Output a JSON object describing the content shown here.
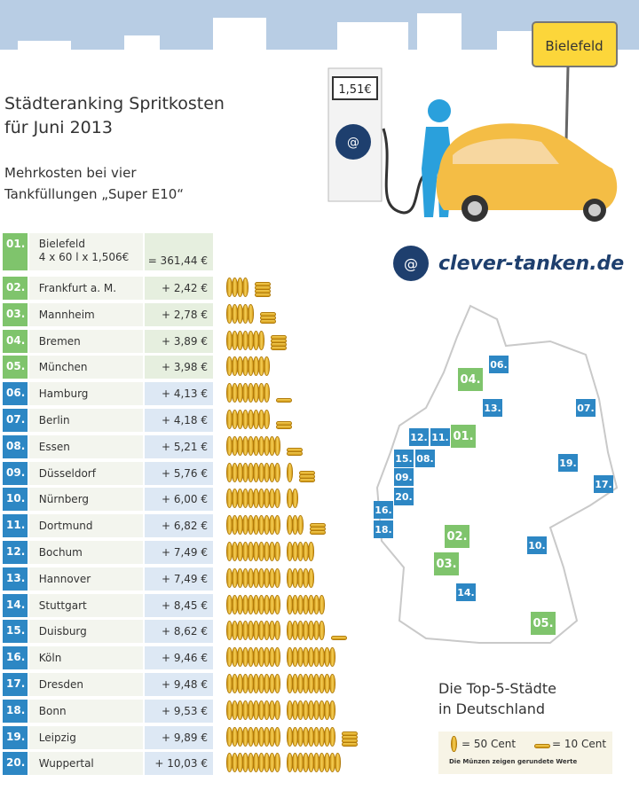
{
  "header": {
    "title_line1": "Städteranking Spritkosten",
    "title_line2": "für Juni 2013",
    "subtitle_line1": "Mehrkosten bei vier",
    "subtitle_line2": "Tankfüllungen „Super E10“"
  },
  "illustration": {
    "pump_price": "1,51€",
    "sign_text": "Bielefeld",
    "logo_text": "clever-tanken.de"
  },
  "colors": {
    "top5": "#7fc46c",
    "others": "#2d87c4",
    "sky": "#b8cde4",
    "coin": "#f0c040",
    "logo": "#1e3f6e"
  },
  "chart_data": {
    "type": "table",
    "unit": "€",
    "first": {
      "rank": "01.",
      "city": "Bielefeld",
      "formula": "4 x 60 l x 1,506€",
      "value_label": "= 361,44 €",
      "value": 361.44
    },
    "rows": [
      {
        "rank": "02.",
        "city": "Frankfurt a. M.",
        "value_label": "+ 2,42 €",
        "value": 2.42
      },
      {
        "rank": "03.",
        "city": "Mannheim",
        "value_label": "+ 2,78 €",
        "value": 2.78
      },
      {
        "rank": "04.",
        "city": "Bremen",
        "value_label": "+ 3,89 €",
        "value": 3.89
      },
      {
        "rank": "05.",
        "city": "München",
        "value_label": "+ 3,98 €",
        "value": 3.98
      },
      {
        "rank": "06.",
        "city": "Hamburg",
        "value_label": "+ 4,13 €",
        "value": 4.13
      },
      {
        "rank": "07.",
        "city": "Berlin",
        "value_label": "+ 4,18 €",
        "value": 4.18
      },
      {
        "rank": "08.",
        "city": "Essen",
        "value_label": "+ 5,21 €",
        "value": 5.21
      },
      {
        "rank": "09.",
        "city": "Düsseldorf",
        "value_label": "+ 5,76 €",
        "value": 5.76
      },
      {
        "rank": "10.",
        "city": "Nürnberg",
        "value_label": "+ 6,00 €",
        "value": 6.0
      },
      {
        "rank": "11.",
        "city": "Dortmund",
        "value_label": "+ 6,82 €",
        "value": 6.82
      },
      {
        "rank": "12.",
        "city": "Bochum",
        "value_label": "+ 7,49 €",
        "value": 7.49
      },
      {
        "rank": "13.",
        "city": "Hannover",
        "value_label": "+ 7,49 €",
        "value": 7.49
      },
      {
        "rank": "14.",
        "city": "Stuttgart",
        "value_label": "+ 8,45 €",
        "value": 8.45
      },
      {
        "rank": "15.",
        "city": "Duisburg",
        "value_label": "+ 8,62 €",
        "value": 8.62
      },
      {
        "rank": "16.",
        "city": "Köln",
        "value_label": "+ 9,46 €",
        "value": 9.46
      },
      {
        "rank": "17.",
        "city": "Dresden",
        "value_label": "+ 9,48 €",
        "value": 9.48
      },
      {
        "rank": "18.",
        "city": "Bonn",
        "value_label": "+ 9,53 €",
        "value": 9.53
      },
      {
        "rank": "19.",
        "city": "Leipzig",
        "value_label": "+ 9,89 €",
        "value": 9.89
      },
      {
        "rank": "20.",
        "city": "Wuppertal",
        "value_label": "+ 10,03 €",
        "value": 10.03
      }
    ],
    "coin_values": {
      "upright": 0.5,
      "flat": 0.1
    }
  },
  "map": {
    "title_line1": "Die Top-5-Städte",
    "title_line2": "in Deutschland",
    "markers": [
      "06.",
      "04.",
      "13.",
      "07.",
      "12.",
      "11.",
      "01.",
      "15.",
      "08.",
      "19.",
      "17.",
      "09.",
      "20.",
      "16.",
      "18.",
      "02.",
      "10.",
      "03.",
      "14.",
      "05."
    ]
  },
  "legend": {
    "upright_label": "= 50 Cent",
    "flat_label": "= 10 Cent",
    "note": "Die Münzen zeigen gerundete Werte"
  }
}
